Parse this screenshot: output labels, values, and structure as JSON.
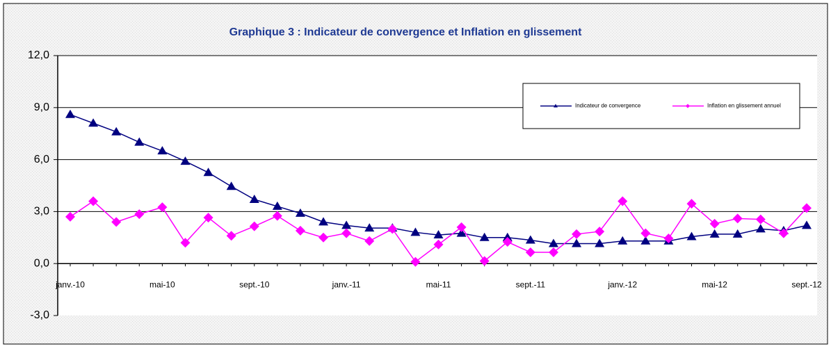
{
  "chart_data": {
    "type": "line",
    "title": "Graphique 3 : Indicateur de convergence et Inflation en glissement",
    "categories": [
      "janv.-10",
      null,
      null,
      null,
      "mai-10",
      null,
      null,
      null,
      "sept.-10",
      null,
      null,
      null,
      "janv.-11",
      null,
      null,
      null,
      "mai-11",
      null,
      null,
      null,
      "sept.-11",
      null,
      null,
      null,
      "janv.-12",
      null,
      null,
      null,
      "mai-12",
      null,
      null,
      null,
      "sept.-12"
    ],
    "series": [
      {
        "name": "Indicateur de convergence",
        "color": "#000080",
        "marker": "triangle",
        "values": [
          8.6,
          8.1,
          7.6,
          7.0,
          6.5,
          5.9,
          5.25,
          4.45,
          3.7,
          3.3,
          2.9,
          2.4,
          2.2,
          2.05,
          2.05,
          1.8,
          1.65,
          1.75,
          1.5,
          1.5,
          1.35,
          1.15,
          1.15,
          1.15,
          1.3,
          1.3,
          1.3,
          1.55,
          1.7,
          1.7,
          2.0,
          1.9,
          2.2
        ]
      },
      {
        "name": "Inflation en glissement annuel",
        "color": "#ff00ff",
        "marker": "diamond",
        "values": [
          2.7,
          3.6,
          2.4,
          2.85,
          3.25,
          1.2,
          2.65,
          1.6,
          2.15,
          2.75,
          1.9,
          1.5,
          1.75,
          1.3,
          2.0,
          0.1,
          1.1,
          2.1,
          0.15,
          1.25,
          0.65,
          0.65,
          1.7,
          1.85,
          3.6,
          1.75,
          1.45,
          3.45,
          2.3,
          2.6,
          2.55,
          1.75,
          3.2
        ]
      }
    ],
    "ylim": [
      -3,
      12
    ],
    "yticks": [
      {
        "value": -3,
        "label": "-3,0"
      },
      {
        "value": 0,
        "label": "0,0"
      },
      {
        "value": 3,
        "label": "3,0"
      },
      {
        "value": 6,
        "label": "6,0"
      },
      {
        "value": 9,
        "label": "9,0"
      },
      {
        "value": 12,
        "label": "12,0"
      }
    ],
    "grid": true,
    "legend": "top-right"
  }
}
